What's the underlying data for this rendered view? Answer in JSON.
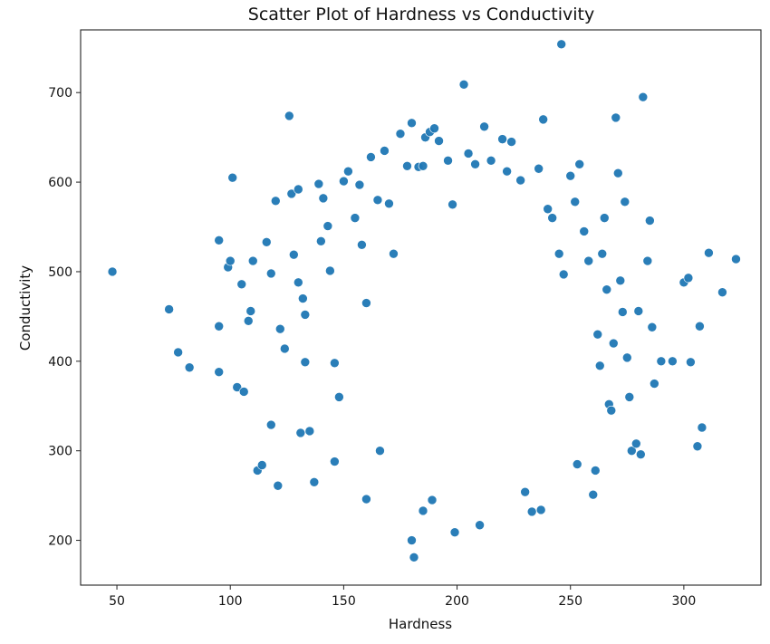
{
  "chart_data": {
    "type": "scatter",
    "title": "Scatter Plot of Hardness vs Conductivity",
    "xlabel": "Hardness",
    "ylabel": "Conductivity",
    "xlim": [
      34,
      334
    ],
    "ylim": [
      150,
      770
    ],
    "xticks": [
      50,
      100,
      150,
      200,
      250,
      300
    ],
    "yticks": [
      200,
      300,
      400,
      500,
      600,
      700
    ],
    "grid": false,
    "legend": "none",
    "color": "#1f77b4",
    "series": [
      {
        "points": [
          [
            48,
            500
          ],
          [
            73,
            458
          ],
          [
            77,
            410
          ],
          [
            82,
            393
          ],
          [
            95,
            535
          ],
          [
            95,
            439
          ],
          [
            95,
            388
          ],
          [
            101,
            605
          ],
          [
            99,
            505
          ],
          [
            100,
            512
          ],
          [
            105,
            486
          ],
          [
            103,
            371
          ],
          [
            106,
            366
          ],
          [
            109,
            456
          ],
          [
            108,
            445
          ],
          [
            110,
            512
          ],
          [
            112,
            278
          ],
          [
            114,
            284
          ],
          [
            116,
            533
          ],
          [
            118,
            498
          ],
          [
            120,
            579
          ],
          [
            118,
            329
          ],
          [
            121,
            261
          ],
          [
            122,
            436
          ],
          [
            124,
            414
          ],
          [
            126,
            674
          ],
          [
            127,
            587
          ],
          [
            130,
            592
          ],
          [
            128,
            519
          ],
          [
            130,
            488
          ],
          [
            132,
            470
          ],
          [
            133,
            452
          ],
          [
            133,
            399
          ],
          [
            131,
            320
          ],
          [
            135,
            322
          ],
          [
            137,
            265
          ],
          [
            139,
            598
          ],
          [
            140,
            534
          ],
          [
            141,
            582
          ],
          [
            143,
            551
          ],
          [
            144,
            501
          ],
          [
            146,
            398
          ],
          [
            146,
            288
          ],
          [
            148,
            360
          ],
          [
            150,
            601
          ],
          [
            152,
            612
          ],
          [
            155,
            560
          ],
          [
            157,
            597
          ],
          [
            158,
            530
          ],
          [
            160,
            465
          ],
          [
            160,
            246
          ],
          [
            162,
            628
          ],
          [
            165,
            580
          ],
          [
            166,
            300
          ],
          [
            168,
            635
          ],
          [
            170,
            576
          ],
          [
            172,
            520
          ],
          [
            175,
            654
          ],
          [
            178,
            618
          ],
          [
            180,
            666
          ],
          [
            180,
            200
          ],
          [
            181,
            181
          ],
          [
            183,
            617
          ],
          [
            185,
            618
          ],
          [
            186,
            650
          ],
          [
            188,
            656
          ],
          [
            190,
            660
          ],
          [
            192,
            646
          ],
          [
            185,
            233
          ],
          [
            189,
            245
          ],
          [
            196,
            624
          ],
          [
            198,
            575
          ],
          [
            199,
            209
          ],
          [
            203,
            709
          ],
          [
            205,
            632
          ],
          [
            208,
            620
          ],
          [
            210,
            217
          ],
          [
            212,
            662
          ],
          [
            215,
            624
          ],
          [
            220,
            648
          ],
          [
            222,
            612
          ],
          [
            224,
            645
          ],
          [
            228,
            602
          ],
          [
            230,
            254
          ],
          [
            233,
            232
          ],
          [
            236,
            615
          ],
          [
            237,
            234
          ],
          [
            238,
            670
          ],
          [
            240,
            570
          ],
          [
            242,
            560
          ],
          [
            246,
            754
          ],
          [
            245,
            520
          ],
          [
            247,
            497
          ],
          [
            250,
            607
          ],
          [
            252,
            578
          ],
          [
            253,
            285
          ],
          [
            254,
            620
          ],
          [
            256,
            545
          ],
          [
            258,
            512
          ],
          [
            260,
            251
          ],
          [
            261,
            278
          ],
          [
            262,
            430
          ],
          [
            263,
            395
          ],
          [
            264,
            520
          ],
          [
            265,
            560
          ],
          [
            266,
            480
          ],
          [
            267,
            352
          ],
          [
            268,
            345
          ],
          [
            269,
            420
          ],
          [
            270,
            672
          ],
          [
            271,
            610
          ],
          [
            272,
            490
          ],
          [
            273,
            455
          ],
          [
            274,
            578
          ],
          [
            275,
            404
          ],
          [
            276,
            360
          ],
          [
            277,
            300
          ],
          [
            279,
            308
          ],
          [
            280,
            456
          ],
          [
            281,
            296
          ],
          [
            282,
            695
          ],
          [
            284,
            512
          ],
          [
            285,
            557
          ],
          [
            286,
            438
          ],
          [
            287,
            375
          ],
          [
            290,
            400
          ],
          [
            295,
            400
          ],
          [
            300,
            488
          ],
          [
            302,
            493
          ],
          [
            303,
            399
          ],
          [
            306,
            305
          ],
          [
            307,
            439
          ],
          [
            308,
            326
          ],
          [
            311,
            521
          ],
          [
            317,
            477
          ],
          [
            323,
            514
          ]
        ]
      }
    ]
  }
}
